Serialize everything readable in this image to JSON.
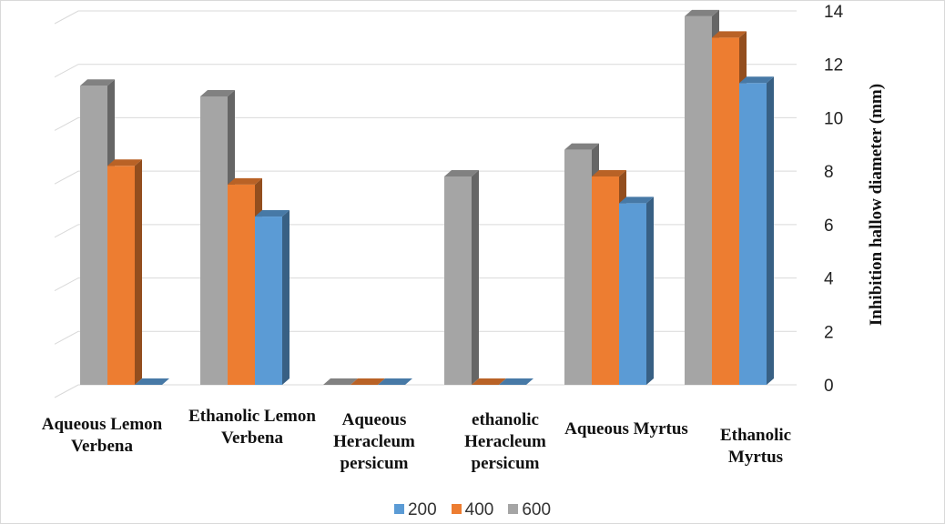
{
  "chart_data": {
    "type": "bar",
    "categories": [
      "Aqueous Lemon Verbena",
      "Ethanolic Lemon Verbena",
      "Aqueous Heracleum persicum",
      "ethanolic Heracleum persicum",
      "Aqueous Myrtus",
      "Ethanolic Myrtus"
    ],
    "series": [
      {
        "name": "600",
        "color": "#a5a5a5",
        "values": [
          11.2,
          10.8,
          0,
          7.8,
          8.8,
          13.8
        ]
      },
      {
        "name": "400",
        "color": "#ed7d31",
        "values": [
          8.2,
          7.5,
          0,
          0,
          7.8,
          13.0
        ]
      },
      {
        "name": "200",
        "color": "#5b9bd5",
        "values": [
          0,
          6.3,
          0,
          0,
          6.8,
          11.3
        ]
      }
    ],
    "legend_order": [
      "200",
      "400",
      "600"
    ],
    "ylabel": "Inhibition hallow diameter (mm)",
    "yticks": [
      0,
      2,
      4,
      6,
      8,
      10,
      12,
      14
    ],
    "ylim": [
      0,
      14
    ],
    "y_axis_position": "right",
    "grid": true,
    "legend_position": "bottom"
  }
}
